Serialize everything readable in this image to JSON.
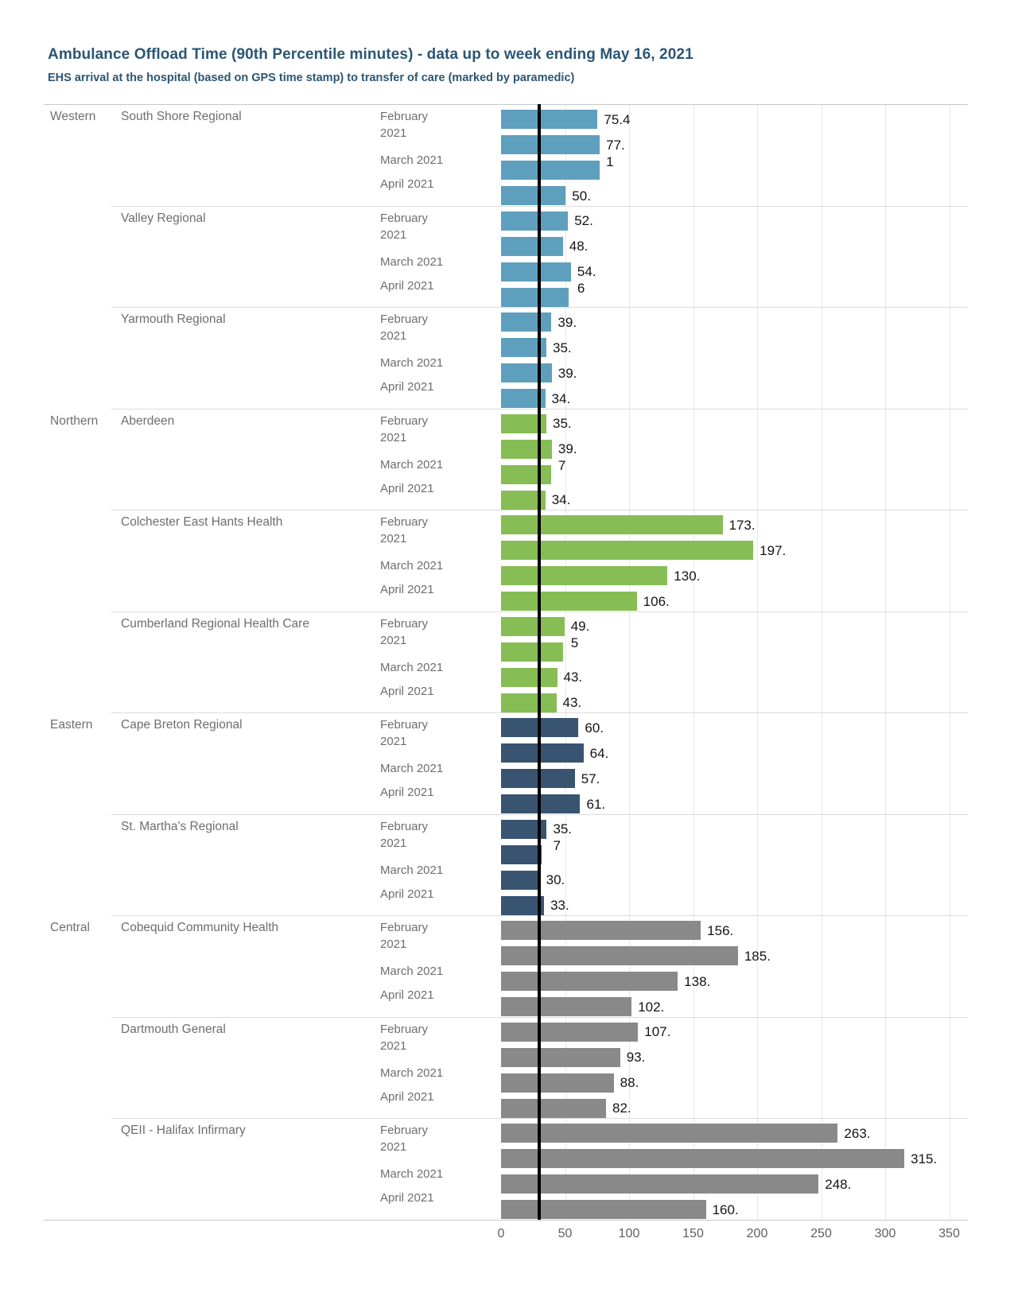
{
  "header": {
    "title": "Ambulance Offload Time (90th Percentile minutes) - data up to week ending May 16, 2021",
    "subtitle": "EHS arrival at the hospital (based on GPS time stamp) to transfer of care (marked by paramedic)"
  },
  "chart_data": {
    "type": "bar",
    "orientation": "horizontal",
    "title": "Ambulance Offload Time (90th Percentile minutes) - data up to week ending May 16, 2021",
    "subtitle": "EHS arrival at the hospital (based on GPS time stamp) to transfer of care (marked by paramedic)",
    "x_axis": {
      "ticks": [
        0,
        50,
        100,
        150,
        200,
        250,
        300,
        350
      ],
      "max": 365,
      "label": ""
    },
    "reference_line": {
      "value": 30,
      "color": "#000000"
    },
    "row_months_shown": [
      "February 2021",
      "March 2021",
      "April 2021"
    ],
    "grid": "on",
    "zones": [
      {
        "name": "Western",
        "color": "#5f9fbe",
        "hospitals": [
          {
            "name": "South Shore Regional",
            "bars": [
              {
                "value": 75.4,
                "label_lines": [
                  "75.4"
                ]
              },
              {
                "value": 77.1,
                "label_lines": [
                  "77.",
                  "1"
                ]
              },
              {
                "value": 77.0,
                "label_lines": []
              },
              {
                "value": 50.5,
                "label_lines": [
                  "50."
                ]
              }
            ]
          },
          {
            "name": "Valley Regional",
            "bars": [
              {
                "value": 52.3,
                "label_lines": [
                  "52."
                ]
              },
              {
                "value": 48.3,
                "label_lines": [
                  "48."
                ]
              },
              {
                "value": 54.6,
                "label_lines": [
                  "54.",
                  "6"
                ]
              },
              {
                "value": 52.8,
                "label_lines": []
              }
            ]
          },
          {
            "name": "Yarmouth Regional",
            "bars": [
              {
                "value": 39.4,
                "label_lines": [
                  "39."
                ]
              },
              {
                "value": 35.4,
                "label_lines": [
                  "35."
                ]
              },
              {
                "value": 39.6,
                "label_lines": [
                  "39."
                ]
              },
              {
                "value": 34.5,
                "label_lines": [
                  "34."
                ]
              }
            ]
          }
        ]
      },
      {
        "name": "Northern",
        "color": "#86bd54",
        "hospitals": [
          {
            "name": "Aberdeen",
            "bars": [
              {
                "value": 35.4,
                "label_lines": [
                  "35."
                ]
              },
              {
                "value": 39.7,
                "label_lines": [
                  "39.",
                  "7"
                ]
              },
              {
                "value": 39.3,
                "label_lines": []
              },
              {
                "value": 34.6,
                "label_lines": [
                  "34."
                ]
              }
            ]
          },
          {
            "name": "Colchester East Hants Health",
            "bars": [
              {
                "value": 173,
                "label_lines": [
                  "173."
                ]
              },
              {
                "value": 197,
                "label_lines": [
                  "197."
                ]
              },
              {
                "value": 130,
                "label_lines": [
                  "130."
                ]
              },
              {
                "value": 106,
                "label_lines": [
                  "106."
                ]
              }
            ]
          },
          {
            "name": "Cumberland Regional Health Care",
            "bars": [
              {
                "value": 49.5,
                "label_lines": [
                  "49.",
                  "5"
                ]
              },
              {
                "value": 48.6,
                "label_lines": []
              },
              {
                "value": 43.8,
                "label_lines": [
                  "43."
                ]
              },
              {
                "value": 43.2,
                "label_lines": [
                  "43."
                ]
              }
            ]
          }
        ]
      },
      {
        "name": "Eastern",
        "color": "#385471",
        "hospitals": [
          {
            "name": "Cape Breton Regional",
            "bars": [
              {
                "value": 60.5,
                "label_lines": [
                  "60."
                ]
              },
              {
                "value": 64.4,
                "label_lines": [
                  "64."
                ]
              },
              {
                "value": 57.6,
                "label_lines": [
                  "57."
                ]
              },
              {
                "value": 61.8,
                "label_lines": [
                  "61."
                ]
              }
            ]
          },
          {
            "name": "St. Martha's Regional",
            "bars": [
              {
                "value": 35.7,
                "label_lines": [
                  "35.",
                  "7"
                ]
              },
              {
                "value": 31.4,
                "label_lines": []
              },
              {
                "value": 30.2,
                "label_lines": [
                  "30."
                ]
              },
              {
                "value": 33.6,
                "label_lines": [
                  "33."
                ]
              }
            ]
          }
        ]
      },
      {
        "name": "Central",
        "color": "#898989",
        "hospitals": [
          {
            "name": "Cobequid Community Health",
            "bars": [
              {
                "value": 156,
                "label_lines": [
                  "156."
                ]
              },
              {
                "value": 185,
                "label_lines": [
                  "185."
                ]
              },
              {
                "value": 138,
                "label_lines": [
                  "138."
                ]
              },
              {
                "value": 102,
                "label_lines": [
                  "102."
                ]
              }
            ]
          },
          {
            "name": "Dartmouth General",
            "bars": [
              {
                "value": 107,
                "label_lines": [
                  "107."
                ]
              },
              {
                "value": 93,
                "label_lines": [
                  "93."
                ]
              },
              {
                "value": 88,
                "label_lines": [
                  "88."
                ]
              },
              {
                "value": 82,
                "label_lines": [
                  "82."
                ]
              }
            ]
          },
          {
            "name": "QEII - Halifax Infirmary",
            "bars": [
              {
                "value": 263,
                "label_lines": [
                  "263."
                ]
              },
              {
                "value": 315,
                "label_lines": [
                  "315."
                ]
              },
              {
                "value": 248,
                "label_lines": [
                  "248."
                ]
              },
              {
                "value": 160,
                "label_lines": [
                  "160."
                ]
              }
            ]
          }
        ]
      }
    ]
  }
}
